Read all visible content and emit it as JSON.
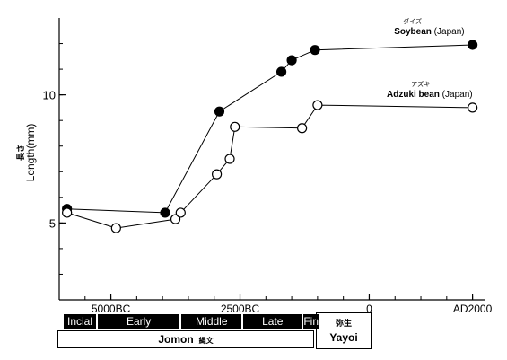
{
  "chart_data": {
    "type": "line",
    "ylabel_jp": "長さ",
    "ylabel": "Length(mm)",
    "xlim": [
      -6000,
      2250
    ],
    "ylim": [
      2,
      13
    ],
    "yticks": [
      5,
      10
    ],
    "xticks": [
      {
        "value": -5000,
        "label": "5000BC"
      },
      {
        "value": -2500,
        "label": "2500BC"
      },
      {
        "value": 0,
        "label": "0"
      },
      {
        "value": 2000,
        "label": "AD2000"
      }
    ],
    "grid": false,
    "series": [
      {
        "name": "Soybean",
        "name_ruby": "ダイズ",
        "region": "(Japan)",
        "marker": "filled",
        "x": [
          -5850,
          -3950,
          -2900,
          -1700,
          -1500,
          -1050,
          2000
        ],
        "y": [
          5.55,
          5.4,
          9.35,
          10.9,
          11.35,
          11.75,
          11.95
        ]
      },
      {
        "name": "Adzuki bean",
        "name_ruby": "アズキ",
        "region": "(Japan)",
        "marker": "open",
        "x": [
          -5850,
          -4900,
          -3750,
          -3650,
          -2950,
          -2700,
          -2600,
          -1300,
          -1000,
          2000
        ],
        "y": [
          5.4,
          4.8,
          5.15,
          5.4,
          6.9,
          7.5,
          8.75,
          8.7,
          9.6,
          9.5
        ]
      }
    ]
  },
  "periods": {
    "jomon_subperiods": [
      {
        "label": "Incial",
        "start": -5930,
        "end": -5270
      },
      {
        "label": "Early",
        "start": -5270,
        "end": -3650
      },
      {
        "label": "Middle",
        "start": -3650,
        "end": -2450
      },
      {
        "label": "Late",
        "start": -2450,
        "end": -1290
      },
      {
        "label": "Fin",
        "start": -1290,
        "end": -960
      }
    ],
    "jomon": {
      "label": "Jomon",
      "label_jp": "縄文"
    },
    "yayoi": {
      "label": "Yayoi",
      "label_jp": "弥生"
    }
  }
}
